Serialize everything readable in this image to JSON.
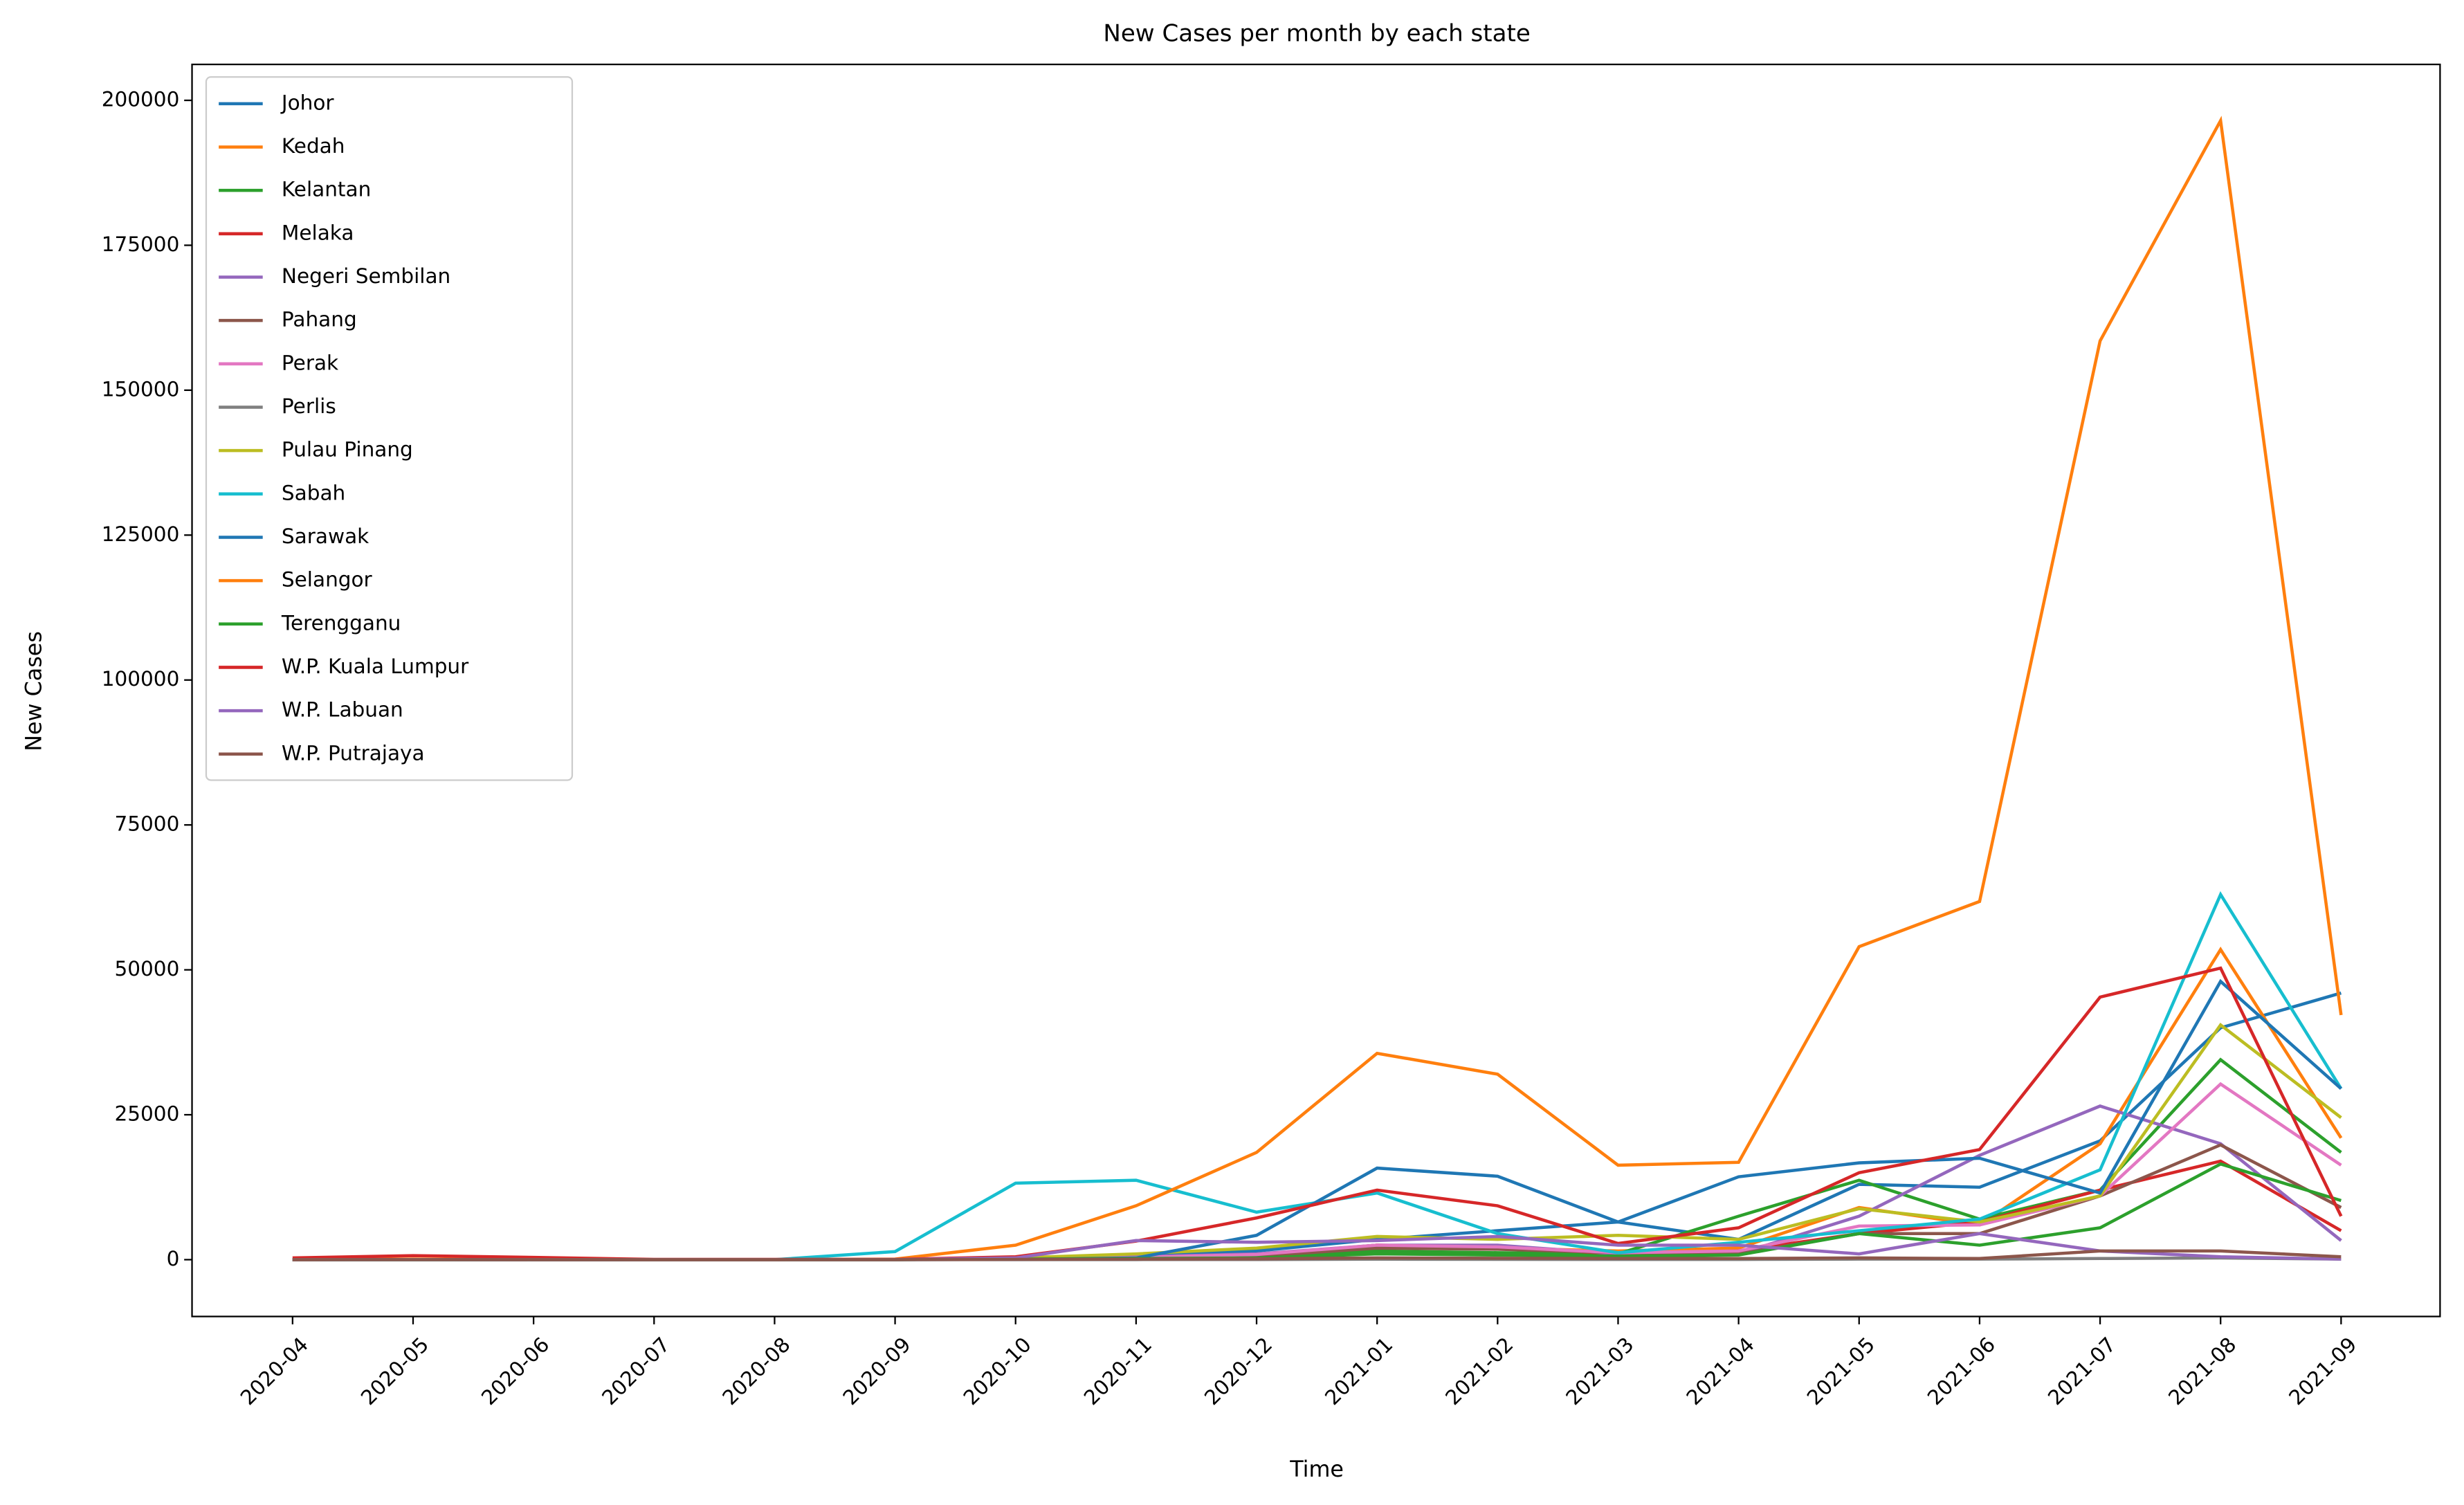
{
  "chart_data": {
    "type": "line",
    "title": "New Cases per month by each state",
    "xlabel": "Time",
    "ylabel": "New Cases",
    "categories": [
      "2020-04",
      "2020-05",
      "2020-06",
      "2020-07",
      "2020-08",
      "2020-09",
      "2020-10",
      "2020-11",
      "2020-12",
      "2021-01",
      "2021-02",
      "2021-03",
      "2021-04",
      "2021-05",
      "2021-06",
      "2021-07",
      "2021-08",
      "2021-09"
    ],
    "ylim": [
      -9800,
      206200
    ],
    "yticks": [
      0,
      25000,
      50000,
      75000,
      100000,
      125000,
      150000,
      175000,
      200000
    ],
    "legend": "upper left",
    "series": [
      {
        "name": "Johor",
        "color": "#1f77b4",
        "values": [
          10,
          50,
          30,
          5,
          5,
          20,
          300,
          800,
          1500,
          3500,
          5000,
          6500,
          3500,
          13000,
          12500,
          20500,
          40000,
          46000
        ]
      },
      {
        "name": "Kedah",
        "color": "#ff7f0e",
        "values": [
          5,
          20,
          10,
          5,
          5,
          10,
          300,
          400,
          800,
          2500,
          2000,
          1500,
          2000,
          9000,
          6000,
          20000,
          53500,
          21000
        ]
      },
      {
        "name": "Kelantan",
        "color": "#2ca02c",
        "values": [
          5,
          10,
          5,
          5,
          5,
          10,
          100,
          200,
          400,
          1500,
          1200,
          1000,
          7500,
          13700,
          7000,
          12000,
          34500,
          18500
        ]
      },
      {
        "name": "Melaka",
        "color": "#d62728",
        "values": [
          10,
          30,
          20,
          5,
          5,
          10,
          200,
          400,
          800,
          2500,
          2200,
          1000,
          1500,
          4500,
          6500,
          12000,
          17000,
          5000
        ]
      },
      {
        "name": "Negeri Sembilan",
        "color": "#9467bd",
        "values": [
          10,
          30,
          20,
          5,
          5,
          10,
          200,
          500,
          1000,
          2500,
          2500,
          1000,
          1000,
          7500,
          18000,
          26500,
          20000,
          3300
        ]
      },
      {
        "name": "Pahang",
        "color": "#8c564b",
        "values": [
          5,
          10,
          5,
          5,
          5,
          10,
          100,
          300,
          600,
          2000,
          1800,
          1200,
          1000,
          4500,
          4500,
          11000,
          19800,
          9000
        ]
      },
      {
        "name": "Perak",
        "color": "#e377c2",
        "values": [
          5,
          20,
          10,
          5,
          5,
          10,
          200,
          400,
          900,
          2500,
          2200,
          1200,
          1500,
          5800,
          6000,
          11000,
          30300,
          16300
        ]
      },
      {
        "name": "Perlis",
        "color": "#7f7f7f",
        "values": [
          0,
          5,
          0,
          0,
          0,
          0,
          10,
          20,
          30,
          80,
          60,
          40,
          50,
          100,
          100,
          200,
          300,
          100
        ]
      },
      {
        "name": "Pulau Pinang",
        "color": "#bcbd22",
        "values": [
          10,
          20,
          10,
          5,
          5,
          10,
          300,
          1000,
          2000,
          4000,
          3500,
          4200,
          3500,
          8800,
          6500,
          11000,
          40500,
          24500
        ]
      },
      {
        "name": "Sabah",
        "color": "#17becf",
        "values": [
          10,
          20,
          10,
          5,
          10,
          1400,
          13200,
          13700,
          8200,
          11500,
          4500,
          1200,
          3000,
          5000,
          7000,
          15500,
          63000,
          29500
        ]
      },
      {
        "name": "Sarawak",
        "color": "#1f77b4",
        "values": [
          5,
          10,
          5,
          5,
          5,
          10,
          50,
          300,
          4200,
          15800,
          14400,
          6500,
          14300,
          16700,
          17500,
          11500,
          48000,
          29500
        ]
      },
      {
        "name": "Selangor",
        "color": "#ff7f0e",
        "values": [
          0,
          100,
          50,
          20,
          10,
          100,
          2500,
          9300,
          18500,
          35600,
          32000,
          16300,
          16800,
          54000,
          61800,
          158500,
          196500,
          42200
        ]
      },
      {
        "name": "Terengganu",
        "color": "#2ca02c",
        "values": [
          5,
          10,
          5,
          5,
          5,
          10,
          100,
          200,
          300,
          1000,
          800,
          600,
          800,
          4500,
          2500,
          5500,
          16500,
          10200
        ]
      },
      {
        "name": "W.P. Kuala Lumpur",
        "color": "#d62728",
        "values": [
          300,
          700,
          400,
          50,
          50,
          50,
          500,
          3200,
          7200,
          12000,
          9300,
          2800,
          5500,
          15000,
          19000,
          45300,
          50300,
          7500
        ]
      },
      {
        "name": "W.P. Labuan",
        "color": "#9467bd",
        "values": [
          5,
          10,
          5,
          5,
          5,
          10,
          300,
          3300,
          3000,
          3300,
          4000,
          2500,
          2500,
          1000,
          4500,
          1500,
          500,
          100
        ]
      },
      {
        "name": "W.P. Putrajaya",
        "color": "#8c564b",
        "values": [
          5,
          10,
          5,
          5,
          5,
          10,
          50,
          100,
          150,
          300,
          250,
          200,
          200,
          300,
          200,
          1500,
          1500,
          500
        ]
      }
    ]
  }
}
